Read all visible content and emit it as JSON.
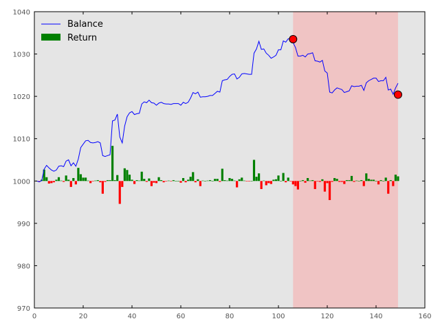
{
  "chart_data": {
    "type": "line",
    "xlim": [
      0,
      160
    ],
    "ylim": [
      970,
      1040
    ],
    "xticks": [
      0,
      20,
      40,
      60,
      80,
      100,
      120,
      140,
      160
    ],
    "yticks": [
      970,
      980,
      990,
      1000,
      1010,
      1020,
      1030,
      1040
    ],
    "grid": false,
    "legend_position": "top-left",
    "colors": {
      "background": "#e5e5e5",
      "balance_line": "#0000ff",
      "positive_return": "#008000",
      "negative_return": "#ff0000",
      "drawdown_span": "#f0c4c4",
      "marker": "#ff0000"
    },
    "legend": [
      {
        "label": "Balance",
        "kind": "line",
        "color": "#0000ff"
      },
      {
        "label": "Return",
        "kind": "bar",
        "color": "#008000"
      }
    ],
    "highlight_span": {
      "x_start": 106,
      "x_end": 149
    },
    "markers": [
      {
        "x": 106,
        "y": 1033.5
      },
      {
        "x": 149,
        "y": 1020.4
      }
    ],
    "series": [
      {
        "name": "Balance",
        "x_start": 1,
        "values": [
          1000.0,
          999.8,
          1000.1,
          1002.8,
          1003.7,
          1003.1,
          1002.6,
          1002.3,
          1002.6,
          1003.5,
          1003.6,
          1003.4,
          1004.7,
          1005.0,
          1003.6,
          1004.3,
          1003.5,
          1005.2,
          1007.9,
          1008.7,
          1009.5,
          1009.6,
          1009.1,
          1009.0,
          1009.1,
          1009.3,
          1009.0,
          1006.0,
          1005.8,
          1006.0,
          1006.2,
          1014.2,
          1014.4,
          1015.8,
          1010.4,
          1009.0,
          1013.0,
          1015.2,
          1016.1,
          1016.4,
          1015.7,
          1015.9,
          1016.0,
          1018.2,
          1018.7,
          1018.5,
          1019.1,
          1018.5,
          1018.4,
          1017.9,
          1018.4,
          1018.6,
          1018.3,
          1018.2,
          1018.2,
          1018.1,
          1018.3,
          1018.3,
          1018.3,
          1017.9,
          1018.6,
          1018.3,
          1018.6,
          1019.6,
          1020.9,
          1020.6,
          1021.0,
          1019.8,
          1019.9,
          1019.9,
          1020.0,
          1020.2,
          1020.2,
          1020.7,
          1021.2,
          1021.0,
          1023.7,
          1023.9,
          1024.0,
          1024.7,
          1025.2,
          1025.3,
          1024.1,
          1024.5,
          1025.3,
          1025.4,
          1025.3,
          1025.2,
          1025.2,
          1030.2,
          1031.2,
          1033.0,
          1031.1,
          1031.2,
          1030.2,
          1029.7,
          1029.0,
          1029.3,
          1029.7,
          1031.0,
          1031.0,
          1033.1,
          1032.8,
          1033.6,
          1033.5,
          1032.7,
          1031.5,
          1029.5,
          1029.5,
          1029.7,
          1029.3,
          1030.0,
          1030.1,
          1030.3,
          1028.4,
          1028.3,
          1028.1,
          1028.5,
          1026.0,
          1025.5,
          1021.0,
          1020.8,
          1021.5,
          1022.0,
          1021.8,
          1021.6,
          1020.9,
          1021.1,
          1021.3,
          1022.5,
          1022.3,
          1022.4,
          1022.4,
          1022.6,
          1021.4,
          1023.2,
          1023.7,
          1024.0,
          1024.3,
          1024.3,
          1023.5,
          1023.7,
          1023.7,
          1024.5,
          1021.5,
          1021.7,
          1020.5,
          1022.0,
          1023.1
        ]
      },
      {
        "name": "Return",
        "x_start": 1,
        "values": [
          0.0,
          -0.2,
          0.3,
          2.7,
          0.9,
          -0.6,
          -0.5,
          -0.3,
          0.3,
          0.9,
          0.1,
          -0.2,
          1.3,
          0.3,
          -1.4,
          0.7,
          -0.8,
          3.1,
          1.6,
          0.8,
          0.8,
          0.1,
          -0.5,
          -0.1,
          0.1,
          0.2,
          -0.3,
          -3.0,
          -0.2,
          0.2,
          0.2,
          8.3,
          0.2,
          1.4,
          -5.4,
          -1.4,
          3.0,
          2.6,
          1.5,
          0.3,
          -0.7,
          0.2,
          0.1,
          2.2,
          0.5,
          -0.2,
          0.6,
          -1.2,
          -0.4,
          -0.5,
          0.9,
          0.2,
          -0.3,
          -0.1,
          0.1,
          -0.1,
          0.2,
          0.0,
          0.0,
          -0.4,
          0.7,
          -0.3,
          0.3,
          1.0,
          2.1,
          -0.3,
          0.4,
          -1.2,
          0.1,
          0.0,
          0.1,
          0.2,
          0.0,
          0.5,
          0.5,
          -0.2,
          2.9,
          0.2,
          0.1,
          0.7,
          0.5,
          0.1,
          -1.5,
          0.4,
          0.8,
          0.1,
          -0.1,
          -0.1,
          0.0,
          5.0,
          1.0,
          1.8,
          -1.9,
          0.1,
          -1.0,
          -0.5,
          -0.7,
          0.3,
          0.4,
          1.3,
          0.0,
          1.9,
          -0.3,
          0.8,
          -0.1,
          -0.8,
          -1.2,
          -2.0,
          0.0,
          0.2,
          -0.4,
          0.7,
          0.1,
          0.2,
          -1.9,
          -0.1,
          -0.2,
          0.4,
          -2.5,
          -0.5,
          -4.5,
          -0.2,
          0.7,
          0.5,
          -0.2,
          -0.2,
          -0.7,
          0.2,
          0.2,
          1.2,
          -0.2,
          0.1,
          0.0,
          0.2,
          -1.2,
          1.8,
          0.5,
          0.3,
          0.3,
          0.0,
          -0.8,
          0.2,
          0.0,
          0.8,
          -3.0,
          0.2,
          -1.2,
          1.5,
          1.1
        ]
      }
    ]
  }
}
